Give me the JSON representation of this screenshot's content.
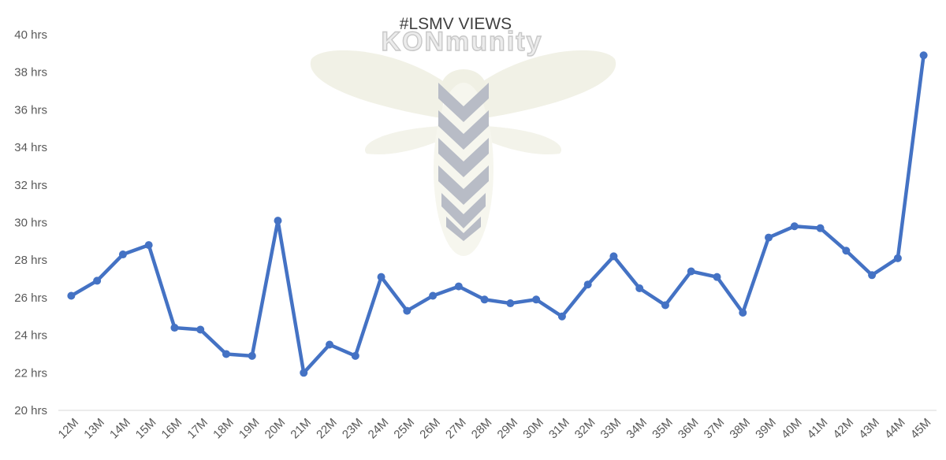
{
  "chart_data": {
    "type": "line",
    "title": "#LSMV VIEWS",
    "watermark": "KONmunity",
    "categories": [
      "12M",
      "13M",
      "14M",
      "15M",
      "16M",
      "17M",
      "18M",
      "19M",
      "20M",
      "21M",
      "22M",
      "23M",
      "24M",
      "25M",
      "26M",
      "27M",
      "28M",
      "29M",
      "30M",
      "31M",
      "32M",
      "33M",
      "34M",
      "35M",
      "36M",
      "37M",
      "38M",
      "39M",
      "40M",
      "41M",
      "42M",
      "43M",
      "44M",
      "45M"
    ],
    "series": [
      {
        "values": [
          26.1,
          26.9,
          28.3,
          28.8,
          24.4,
          24.3,
          23.0,
          22.9,
          30.1,
          22.0,
          23.5,
          22.9,
          27.1,
          25.3,
          26.1,
          26.6,
          25.9,
          25.7,
          25.9,
          25.0,
          26.7,
          28.2,
          26.5,
          25.6,
          27.4,
          27.1,
          25.2,
          29.2,
          29.8,
          29.7,
          28.5,
          27.2,
          28.1,
          38.9
        ],
        "color": "#4472c4"
      }
    ],
    "yticks": [
      "20 hrs",
      "22 hrs",
      "24 hrs",
      "26 hrs",
      "28 hrs",
      "30 hrs",
      "32 hrs",
      "34 hrs",
      "36 hrs",
      "38 hrs",
      "40 hrs"
    ],
    "ylim": [
      20,
      40
    ],
    "grid": false,
    "legend": "none"
  }
}
